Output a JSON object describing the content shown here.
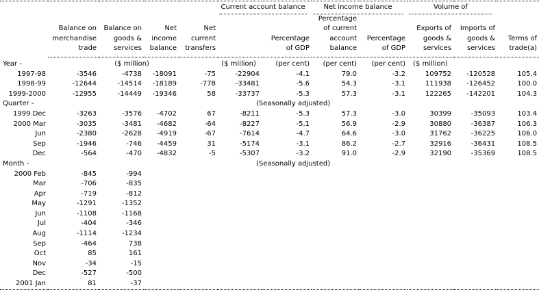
{
  "groups": {
    "current_account": "Current account balance",
    "net_income": "Net income balance",
    "volume": "Volume of"
  },
  "headers": [
    "Balance on merchandise trade",
    "Balance on goods & services",
    "Net income balance",
    "Net current transfers",
    "",
    "Percentage of GDP",
    "Percentage of current account balance",
    "Percentage of GDP",
    "Exports of goods & services",
    "Imports of goods & services",
    "Terms of trade(a)"
  ],
  "units": {
    "col1_4": "($ million)",
    "col5": "($ million)",
    "col6": "(per cent)",
    "col7": "(per cent)",
    "col8": "(per cent)",
    "col9_10": "($ million)"
  },
  "sections": [
    {
      "label": "Year -",
      "note": "",
      "rows": [
        {
          "label": "1997-98",
          "values": [
            "-3546",
            "-4738",
            "-18091",
            "-75",
            "-22904",
            "-4.1",
            "79.0",
            "-3.2",
            "109752",
            "-120528",
            "105.4"
          ]
        },
        {
          "label": "1998-99",
          "values": [
            "-12644",
            "-14514",
            "-18189",
            "-778",
            "-33481",
            "-5.6",
            "54.3",
            "-3.1",
            "111938",
            "-126452",
            "100.0"
          ]
        },
        {
          "label": "1999-2000",
          "values": [
            "-12955",
            "-14449",
            "-19346",
            "58",
            "-33737",
            "-5.3",
            "57.3",
            "-3.1",
            "122265",
            "-142201",
            "104.3"
          ]
        }
      ]
    },
    {
      "label": "Quarter -",
      "note": "(Seasonally adjusted)",
      "rows": [
        {
          "label": "1999 Dec",
          "values": [
            "-3263",
            "-3576",
            "-4702",
            "67",
            "-8211",
            "-5.3",
            "57.3",
            "-3.0",
            "30399",
            "-35093",
            "103.4"
          ]
        },
        {
          "label": "2000 Mar",
          "values": [
            "-3035",
            "-3481",
            "-4682",
            "-64",
            "-8227",
            "-5.1",
            "56.9",
            "-2.9",
            "30880",
            "-36387",
            "106.3"
          ]
        },
        {
          "label": "Jun",
          "values": [
            "-2380",
            "-2628",
            "-4919",
            "-67",
            "-7614",
            "-4.7",
            "64.6",
            "-3.0",
            "31762",
            "-36225",
            "106.0"
          ]
        },
        {
          "label": "Sep",
          "values": [
            "-1946",
            "-746",
            "-4459",
            "31",
            "-5174",
            "-3.1",
            "86.2",
            "-2.7",
            "32916",
            "-36431",
            "108.5"
          ]
        },
        {
          "label": "Dec",
          "values": [
            "-564",
            "-470",
            "-4832",
            "-5",
            "-5307",
            "-3.2",
            "91.0",
            "-2.9",
            "32190",
            "-35369",
            "108.5"
          ]
        }
      ]
    },
    {
      "label": "Month -",
      "note": "(Seasonally adjusted)",
      "rows": [
        {
          "label": "2000 Feb",
          "values": [
            "-845",
            "-994"
          ]
        },
        {
          "label": "Mar",
          "values": [
            "-706",
            "-835"
          ]
        },
        {
          "label": "Apr",
          "values": [
            "-719",
            "-812"
          ]
        },
        {
          "label": "May",
          "values": [
            "-1291",
            "-1352"
          ]
        },
        {
          "label": "Jun",
          "values": [
            "-1108",
            "-1168"
          ]
        },
        {
          "label": "Jul",
          "values": [
            "-404",
            "-346"
          ]
        },
        {
          "label": "Aug",
          "values": [
            "-1114",
            "-1234"
          ]
        },
        {
          "label": "Sep",
          "values": [
            "-464",
            "738"
          ]
        },
        {
          "label": "Oct",
          "values": [
            "85",
            "161"
          ]
        },
        {
          "label": "Nov",
          "values": [
            "-34",
            "-15"
          ]
        },
        {
          "label": "Dec",
          "values": [
            "-527",
            "-500"
          ]
        },
        {
          "label": "2001 Jan",
          "values": [
            "81",
            "-37"
          ]
        }
      ]
    }
  ]
}
